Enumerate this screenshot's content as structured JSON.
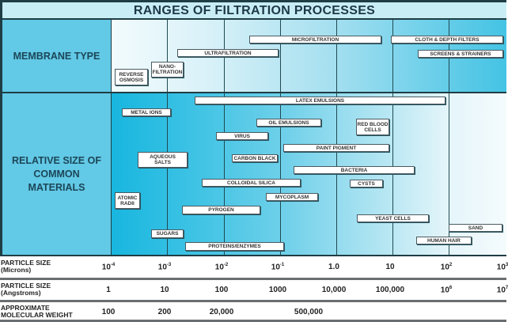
{
  "title": "RANGES OF FILTRATION PROCESSES",
  "rows": {
    "membrane": "MEMBRANE TYPE",
    "materials": "RELATIVE SIZE OF\nCOMMON\nMATERIALS"
  },
  "colors": {
    "border": "#1f3d44",
    "label_bg": "#62c9e6",
    "title_bg": "#c9edf5",
    "text": "#1c4658"
  },
  "membranes": [
    "REVERSE\nOSMOSIS",
    "NANO-\nFILTRATION",
    "ULTRAFILTRATION",
    "MICROFILTRATION",
    "CLOTH & DEPTH FILTERS",
    "SCREENS & STRAINERS"
  ],
  "materials": [
    "LATEX EMULSIONS",
    "METAL IONS",
    "OIL EMULSIONS",
    "RED BLOOD\nCELLS",
    "VIRUS",
    "PAINT PIGMENT",
    "AQUEOUS\nSALTS",
    "CARBON BLACK",
    "BACTERIA",
    "COLLOIDAL SILICA",
    "CYSTS",
    "ATOMIC\nRADII",
    "MYCOPLASM",
    "PYROGEN",
    "YEAST CELLS",
    "SAND",
    "SUGARS",
    "HUMAN HAIR",
    "PROTEINS/ENZYMES"
  ],
  "scales": {
    "microns": {
      "label": "PARTICLE SIZE\n(Microns)",
      "values": [
        "10",
        "10",
        "10",
        "10",
        "1.0",
        "10",
        "10",
        "10"
      ],
      "exponents": [
        "-4",
        "-3",
        "-2",
        "-1",
        "",
        "",
        "2",
        "3"
      ]
    },
    "angstroms": {
      "label": "PARTICLE SIZE\n(Angstroms)",
      "values": [
        "1",
        "10",
        "100",
        "1000",
        "10,000",
        "100,000",
        "10",
        "10"
      ],
      "exponents": [
        "",
        "",
        "",
        "",
        "",
        "",
        "6",
        "7"
      ]
    },
    "mw": {
      "label": "APPROXIMATE\nMOLECULAR WEIGHT",
      "values": [
        "100",
        "200",
        "20,000",
        "500,000"
      ]
    }
  }
}
